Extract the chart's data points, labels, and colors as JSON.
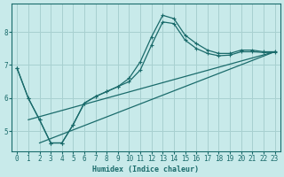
{
  "xlabel": "Humidex (Indice chaleur)",
  "bg_color": "#c8eaea",
  "line_color": "#1a6b6b",
  "grid_color": "#a8d0d0",
  "xlim": [
    -0.5,
    23.5
  ],
  "ylim": [
    4.4,
    8.85
  ],
  "xticks": [
    0,
    1,
    2,
    3,
    4,
    5,
    6,
    7,
    8,
    9,
    10,
    11,
    12,
    13,
    14,
    15,
    16,
    17,
    18,
    19,
    20,
    21,
    22,
    23
  ],
  "yticks": [
    5,
    6,
    7,
    8
  ],
  "series": [
    {
      "x": [
        0,
        1,
        2,
        3,
        4,
        5,
        6,
        7,
        8,
        9,
        10,
        11,
        12,
        13,
        14,
        15,
        16,
        17,
        18,
        19,
        20,
        21,
        22,
        23
      ],
      "y": [
        6.9,
        6.0,
        5.35,
        4.65,
        4.65,
        5.2,
        5.85,
        6.05,
        6.2,
        6.35,
        6.6,
        7.1,
        7.85,
        8.5,
        8.4,
        7.9,
        7.65,
        7.45,
        7.35,
        7.35,
        7.45,
        7.45,
        7.4,
        7.4
      ],
      "marker": true
    },
    {
      "x": [
        0,
        1,
        2,
        3,
        4,
        5,
        6,
        7,
        8,
        9,
        10,
        11,
        12,
        13,
        14,
        15,
        16,
        17,
        18,
        19,
        20,
        21,
        22,
        23
      ],
      "y": [
        6.9,
        6.0,
        5.35,
        4.65,
        4.65,
        5.2,
        5.85,
        6.05,
        6.2,
        6.35,
        6.5,
        6.85,
        7.6,
        8.3,
        8.25,
        7.75,
        7.5,
        7.35,
        7.28,
        7.3,
        7.4,
        7.4,
        7.38,
        7.38
      ],
      "marker": true
    },
    {
      "x": [
        1,
        23
      ],
      "y": [
        5.35,
        7.4
      ],
      "marker": false
    },
    {
      "x": [
        2,
        23
      ],
      "y": [
        4.65,
        7.4
      ],
      "marker": false
    }
  ]
}
